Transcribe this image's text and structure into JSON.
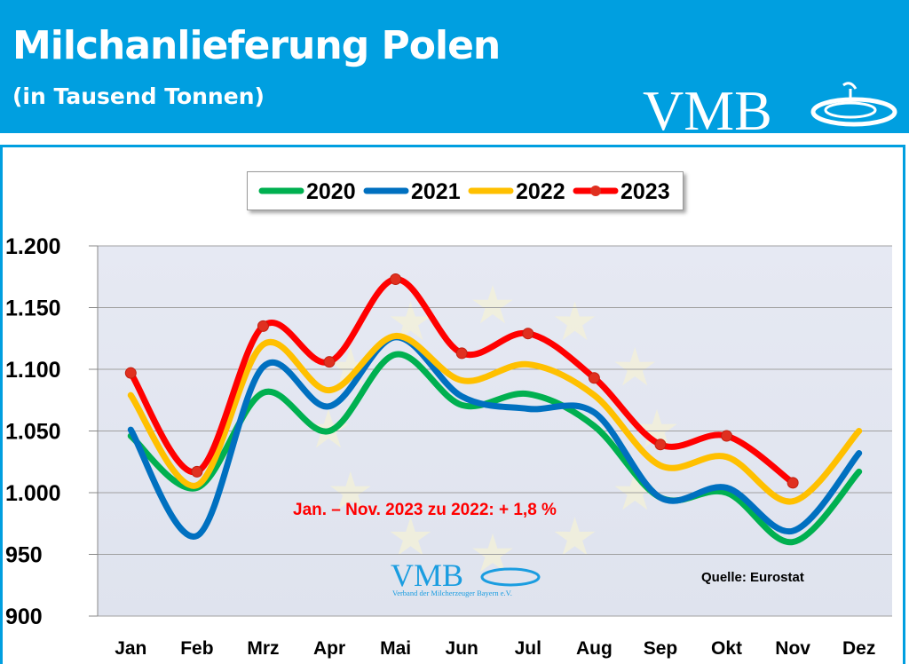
{
  "header": {
    "title": "Milchanlieferung Polen",
    "subtitle": "(in Tausend Tonnen)",
    "logo_text": "VMB"
  },
  "colors": {
    "header": "#009fe0",
    "2020": "#00b050",
    "2021": "#0070c0",
    "2022": "#ffc000",
    "2023": "#ff0000"
  },
  "chart_data": {
    "type": "line",
    "title": "Milchanlieferung Polen",
    "subtitle": "(in Tausend Tonnen)",
    "categories": [
      "Jan",
      "Feb",
      "Mrz",
      "Apr",
      "Mai",
      "Jun",
      "Jul",
      "Aug",
      "Sep",
      "Okt",
      "Nov",
      "Dez"
    ],
    "ylim": [
      900,
      1200
    ],
    "yticks": [
      900,
      950,
      1000,
      1050,
      1100,
      1150,
      1200
    ],
    "ytick_labels": [
      "900",
      "950",
      "1.000",
      "1.050",
      "1.100",
      "1.150",
      "1.200"
    ],
    "grid": true,
    "smooth": true,
    "legend_position": "top",
    "series": [
      {
        "name": "2020",
        "color": "#00b050",
        "markers": false,
        "values": [
          1046,
          1004,
          1081,
          1050,
          1112,
          1071,
          1080,
          1054,
          996,
          1000,
          960,
          1017
        ]
      },
      {
        "name": "2021",
        "color": "#0070c0",
        "markers": false,
        "values": [
          1051,
          965,
          1102,
          1070,
          1126,
          1078,
          1068,
          1065,
          996,
          1004,
          969,
          1032
        ]
      },
      {
        "name": "2022",
        "color": "#ffc000",
        "markers": false,
        "values": [
          1079,
          1006,
          1120,
          1083,
          1127,
          1091,
          1104,
          1079,
          1022,
          1029,
          993,
          1050
        ]
      },
      {
        "name": "2023",
        "color": "#ff0000",
        "markers": true,
        "values": [
          1097,
          1017,
          1135,
          1106,
          1173,
          1113,
          1129,
          1093,
          1039,
          1046,
          1008,
          null
        ]
      }
    ],
    "annotations": {
      "comparison": "Jan. – Nov. 2023 zu 2022: + 1,8 %",
      "source": "Quelle: Eurostat"
    },
    "watermark": {
      "logo_text": "VMB",
      "logo_caption": "Verband der Milcherzeuger Bayern e.V."
    }
  }
}
